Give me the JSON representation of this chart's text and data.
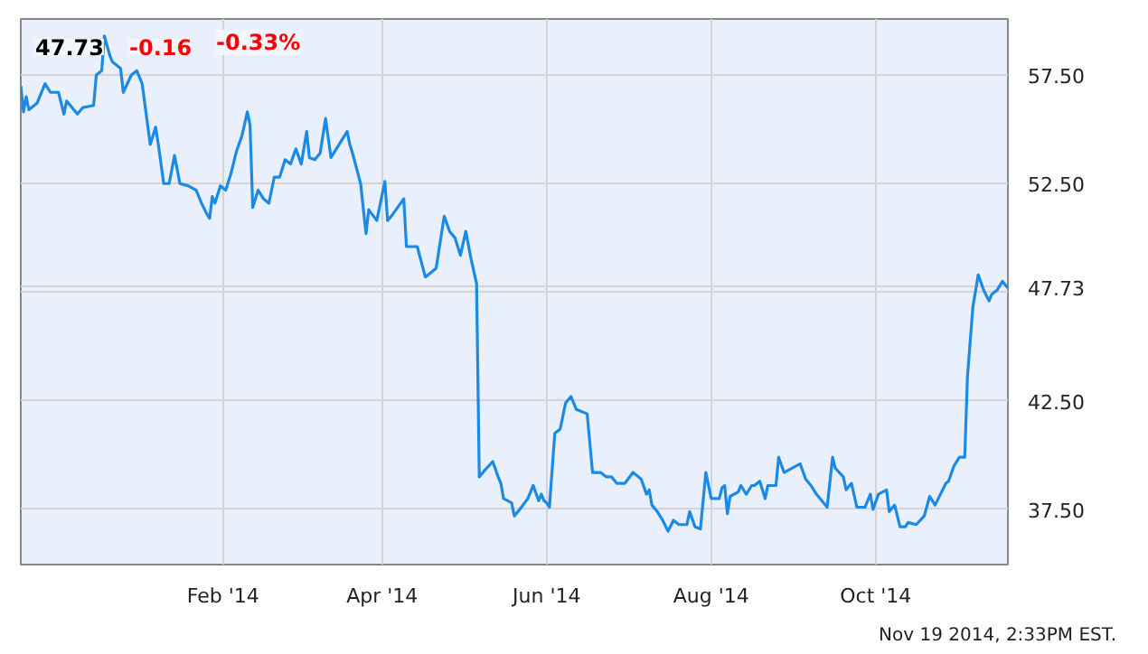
{
  "chart_data": {
    "type": "line",
    "annotations": [
      "47.73",
      "-0.16",
      "-0.33%",
      "Nov 19 2014, 2:33PM EST."
    ],
    "x": [
      "2013-11-18",
      "2013-11-19",
      "2013-11-20",
      "2013-11-21",
      "2013-11-24",
      "2013-11-27",
      "2013-11-29",
      "2013-12-02",
      "2013-12-04",
      "2013-12-05",
      "2013-12-09",
      "2013-12-11",
      "2013-12-15",
      "2013-12-16",
      "2013-12-18",
      "2013-12-19",
      "2013-12-21",
      "2013-12-22",
      "2013-12-25",
      "2013-12-26",
      "2013-12-29",
      "2013-12-31",
      "2014-01-02",
      "2014-01-05",
      "2014-01-07",
      "2014-01-08",
      "2014-01-10",
      "2014-01-12",
      "2014-01-14",
      "2014-01-16",
      "2014-01-19",
      "2014-01-22",
      "2014-01-24",
      "2014-01-26",
      "2014-01-27",
      "2014-01-28",
      "2014-01-29",
      "2014-01-31",
      "2014-02-02",
      "2014-02-04",
      "2014-02-06",
      "2014-02-08",
      "2014-02-10",
      "2014-02-11",
      "2014-02-12",
      "2014-02-14",
      "2014-02-16",
      "2014-02-18",
      "2014-02-20",
      "2014-02-22",
      "2014-02-24",
      "2014-02-26",
      "2014-02-28",
      "2014-03-02",
      "2014-03-04",
      "2014-03-05",
      "2014-03-07",
      "2014-03-09",
      "2014-03-11",
      "2014-03-13",
      "2014-03-15",
      "2014-03-19",
      "2014-03-20",
      "2014-03-21",
      "2014-03-24",
      "2014-03-26",
      "2014-03-27",
      "2014-03-30",
      "2014-04-02",
      "2014-04-03",
      "2014-04-05",
      "2014-04-09",
      "2014-04-10",
      "2014-04-14",
      "2014-04-17",
      "2014-04-21",
      "2014-04-24",
      "2014-04-26",
      "2014-04-28",
      "2014-04-30",
      "2014-05-02",
      "2014-05-04",
      "2014-05-06",
      "2014-05-07",
      "2014-05-09",
      "2014-05-12",
      "2014-05-14",
      "2014-05-15",
      "2014-05-16",
      "2014-05-19",
      "2014-05-20",
      "2014-05-22",
      "2014-05-25",
      "2014-05-27",
      "2014-05-29",
      "2014-05-30",
      "2014-05-31",
      "2014-06-01",
      "2014-06-02",
      "2014-06-04",
      "2014-06-06",
      "2014-06-08",
      "2014-06-10",
      "2014-06-12",
      "2014-06-16",
      "2014-06-18",
      "2014-06-21",
      "2014-06-23",
      "2014-06-25",
      "2014-06-27",
      "2014-06-30",
      "2014-07-03",
      "2014-07-06",
      "2014-07-08",
      "2014-07-09",
      "2014-07-10",
      "2014-07-12",
      "2014-07-14",
      "2014-07-16",
      "2014-07-18",
      "2014-07-20",
      "2014-07-23",
      "2014-07-24",
      "2014-07-26",
      "2014-07-28",
      "2014-07-30",
      "2014-08-01",
      "2014-08-04",
      "2014-08-05",
      "2014-08-06",
      "2014-08-07",
      "2014-08-08",
      "2014-08-11",
      "2014-08-12",
      "2014-08-14",
      "2014-08-16",
      "2014-08-17",
      "2014-08-19",
      "2014-08-21",
      "2014-08-22",
      "2014-08-25",
      "2014-08-26",
      "2014-08-28",
      "2014-09-03",
      "2014-09-05",
      "2014-09-07",
      "2014-09-09",
      "2014-09-11",
      "2014-09-13",
      "2014-09-15",
      "2014-09-16",
      "2014-09-19",
      "2014-09-20",
      "2014-09-22",
      "2014-09-24",
      "2014-09-27",
      "2014-09-29",
      "2014-09-30",
      "2014-10-02",
      "2014-10-05",
      "2014-10-06",
      "2014-10-08",
      "2014-10-10",
      "2014-10-12",
      "2014-10-13",
      "2014-10-16",
      "2014-10-19",
      "2014-10-21",
      "2014-10-23",
      "2014-10-25",
      "2014-10-27",
      "2014-10-28",
      "2014-10-30",
      "2014-11-01",
      "2014-11-03",
      "2014-11-04",
      "2014-11-06",
      "2014-11-08",
      "2014-11-10",
      "2014-11-12",
      "2014-11-13",
      "2014-11-15",
      "2014-11-17",
      "2014-11-19"
    ],
    "series": [
      {
        "color": "#1b8ae6",
        "values": [
          57.0,
          55.8,
          56.5,
          55.9,
          56.2,
          57.1,
          56.7,
          56.7,
          55.7,
          56.3,
          55.7,
          56.0,
          56.1,
          57.5,
          57.7,
          59.3,
          58.4,
          58.1,
          57.8,
          56.7,
          57.5,
          57.7,
          57.1,
          54.3,
          55.1,
          54.3,
          52.5,
          52.5,
          53.8,
          52.5,
          52.4,
          52.2,
          51.6,
          51.1,
          50.9,
          51.9,
          51.6,
          52.4,
          52.2,
          53.0,
          54.0,
          54.7,
          55.8,
          55.2,
          51.4,
          52.2,
          51.8,
          51.6,
          52.8,
          52.8,
          53.6,
          53.4,
          54.1,
          53.4,
          54.9,
          53.7,
          53.6,
          53.9,
          55.5,
          53.7,
          54.1,
          54.9,
          54.3,
          53.9,
          52.5,
          50.2,
          51.3,
          50.8,
          52.6,
          50.8,
          51.1,
          51.8,
          49.6,
          49.6,
          48.2,
          48.6,
          51.0,
          50.3,
          50.0,
          49.2,
          50.3,
          49.0,
          47.9,
          39.0,
          39.3,
          39.7,
          39.0,
          38.7,
          38.0,
          37.8,
          37.2,
          37.5,
          38.0,
          38.6,
          37.9,
          38.2,
          37.9,
          37.8,
          37.6,
          41.0,
          41.2,
          42.4,
          42.7,
          42.1,
          41.9,
          39.2,
          39.2,
          39.0,
          39.0,
          38.7,
          38.7,
          39.2,
          38.9,
          38.2,
          38.4,
          37.7,
          37.4,
          37.0,
          36.5,
          37.0,
          36.8,
          36.8,
          37.4,
          36.7,
          36.6,
          39.2,
          38.0,
          38.0,
          38.5,
          38.6,
          37.3,
          38.1,
          38.3,
          38.6,
          38.2,
          38.6,
          38.6,
          38.8,
          38.0,
          38.6,
          38.6,
          39.9,
          39.2,
          39.6,
          38.9,
          38.6,
          38.2,
          37.9,
          37.6,
          39.9,
          39.4,
          39.0,
          38.4,
          38.7,
          37.6,
          37.6,
          38.2,
          37.5,
          38.2,
          38.4,
          37.4,
          37.7,
          36.7,
          36.7,
          36.9,
          36.8,
          37.2,
          38.1,
          37.7,
          38.2,
          38.7,
          38.8,
          39.5,
          39.9,
          39.9,
          43.6,
          46.8,
          48.3,
          47.6,
          47.1,
          47.4,
          47.6,
          48.0,
          47.7
        ]
      }
    ],
    "xlim": [
      "2013-11-18",
      "2014-11-19"
    ],
    "xticks": [
      {
        "value": "2014-02-01",
        "label": "Feb '14"
      },
      {
        "value": "2014-04-01",
        "label": "Apr '14"
      },
      {
        "value": "2014-06-01",
        "label": "Jun '14"
      },
      {
        "value": "2014-08-01",
        "label": "Aug '14"
      },
      {
        "value": "2014-10-01",
        "label": "Oct '14"
      }
    ],
    "ylim": [
      34.96,
      60.08
    ],
    "yticks": [
      {
        "value": 37.5,
        "label": "37.50"
      },
      {
        "value": 42.5,
        "label": "42.50"
      },
      {
        "value": 47.5,
        "label": null
      },
      {
        "value": 47.73,
        "label": "47.73"
      },
      {
        "value": 52.5,
        "label": "52.50"
      },
      {
        "value": 57.5,
        "label": "57.50"
      }
    ],
    "grid": true,
    "marker": "none",
    "line_style": "solid"
  }
}
